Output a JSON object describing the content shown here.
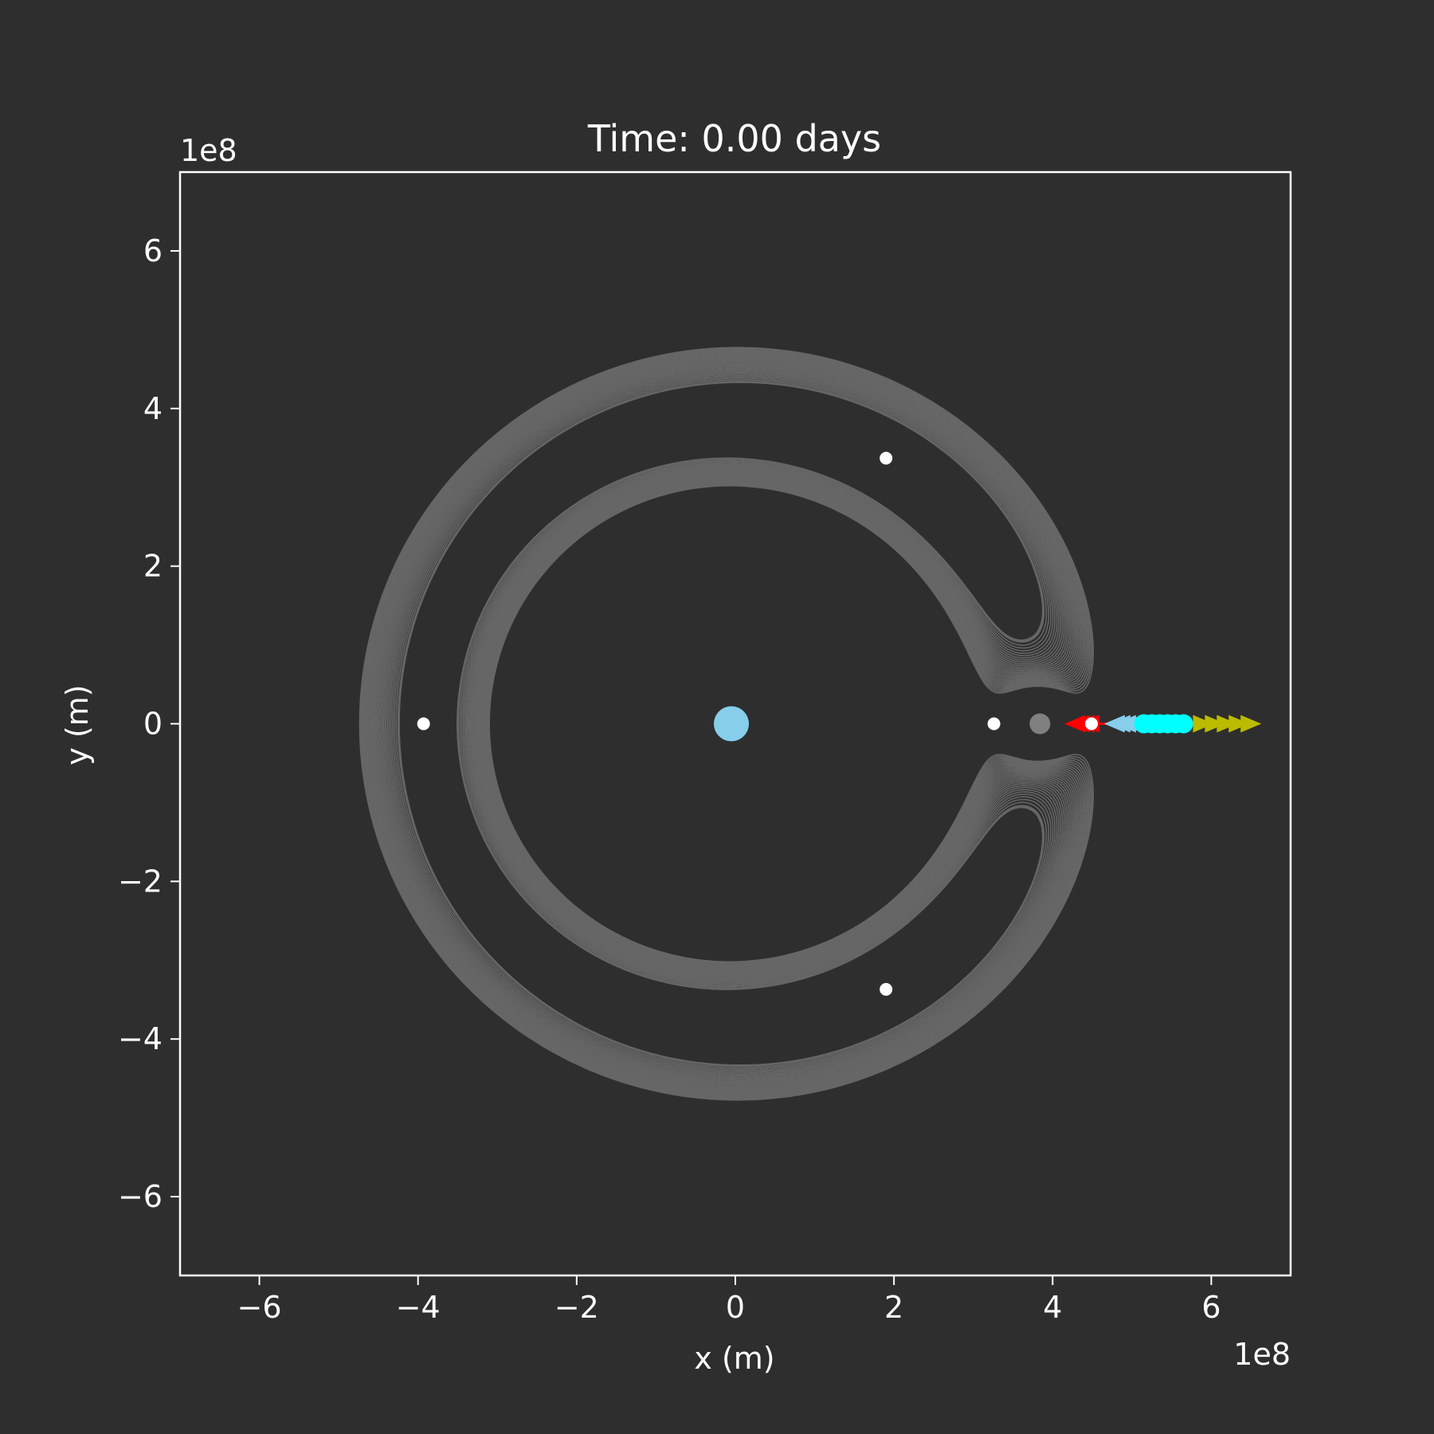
{
  "chart_data": {
    "type": "scatter",
    "title": "Time: 0.00 days",
    "xlabel": "x (m)",
    "ylabel": "y (m)",
    "x_offset_label": "1e8",
    "y_offset_label": "1e8",
    "xlim": [
      -700000000.0,
      700000000.0
    ],
    "ylim": [
      -700000000.0,
      700000000.0
    ],
    "xticks": [
      -600000000.0,
      -400000000.0,
      -200000000.0,
      0,
      200000000.0,
      400000000.0,
      600000000.0
    ],
    "yticks": [
      -600000000.0,
      -400000000.0,
      -200000000.0,
      0,
      200000000.0,
      400000000.0,
      600000000.0
    ],
    "xtick_labels": [
      "−6",
      "−4",
      "−2",
      "0",
      "2",
      "4",
      "6"
    ],
    "ytick_labels": [
      "−6",
      "−4",
      "−2",
      "0",
      "2",
      "4",
      "6"
    ],
    "grid": false,
    "colors": {
      "background": "#2e2e2e",
      "axes": "#ffffff",
      "contour": "#666666",
      "earth": "#87ceeb",
      "moon": "#808080",
      "lagrange": "#ffffff",
      "red_markers": "#ff0000",
      "blue_markers": "#87ceeb",
      "cyan_markers": "#00ffff",
      "yellow_markers": "#bbbb00"
    },
    "bodies": [
      {
        "name": "earth",
        "x": -5000000.0,
        "y": 0
      },
      {
        "name": "moon",
        "x": 384000000.0,
        "y": 0
      }
    ],
    "lagrange_points": [
      {
        "x": 326000000.0,
        "y": 0
      },
      {
        "x": 449000000.0,
        "y": 0
      },
      {
        "x": -393000000.0,
        "y": 0
      },
      {
        "x": 190000000.0,
        "y": 337000000.0
      },
      {
        "x": 190000000.0,
        "y": -337000000.0
      }
    ],
    "markers": [
      {
        "group": "red",
        "shape": "triangle-left",
        "x": [
          428000000.0,
          434000000.0,
          440000000.0,
          446000000.0
        ]
      },
      {
        "group": "blue",
        "shape": "triangle-left",
        "x": [
          478000000.0,
          485000000.0,
          492000000.0,
          499000000.0
        ]
      },
      {
        "group": "cyan",
        "shape": "circle",
        "x": [
          515000000.0,
          525000000.0,
          535000000.0,
          545000000.0,
          555000000.0,
          565000000.0
        ]
      },
      {
        "group": "yellow",
        "shape": "triangle-right",
        "x": [
          590000000.0,
          605000000.0,
          620000000.0,
          635000000.0,
          650000000.0
        ]
      }
    ],
    "arrow": {
      "x_from": 450000000.0,
      "x_to": 515000000.0,
      "y": 0
    }
  }
}
